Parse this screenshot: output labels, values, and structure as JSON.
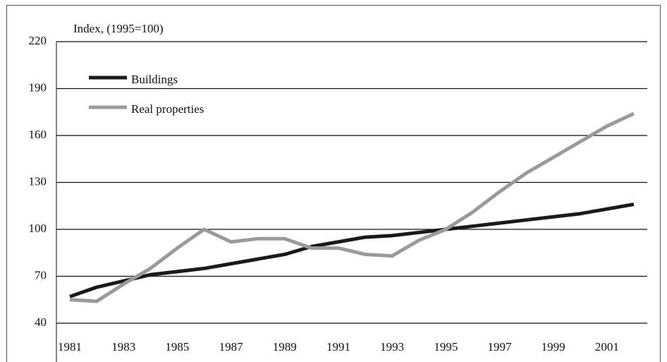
{
  "chart_data": {
    "type": "line",
    "y_label": "Index, (1995=100)",
    "x": [
      1981,
      1982,
      1983,
      1984,
      1985,
      1986,
      1987,
      1988,
      1989,
      1990,
      1991,
      1992,
      1993,
      1994,
      1995,
      1996,
      1997,
      1998,
      1999,
      2000,
      2001,
      2002
    ],
    "series": [
      {
        "name": "Buildings",
        "color": "#1a1a1a",
        "values": [
          57,
          63,
          67,
          71,
          73,
          75,
          78,
          81,
          84,
          89,
          92,
          95,
          96,
          98,
          100,
          102,
          104,
          106,
          108,
          110,
          113,
          116
        ]
      },
      {
        "name": "Real properties",
        "color": "#9a9a9a",
        "values": [
          55,
          54,
          65,
          75,
          88,
          100,
          92,
          94,
          94,
          88,
          88,
          84,
          83,
          93,
          100,
          111,
          124,
          136,
          146,
          156,
          166,
          174
        ]
      }
    ],
    "xlim": [
      1980.5,
      2002.5
    ],
    "xticks": [
      1981,
      1983,
      1985,
      1987,
      1989,
      1991,
      1993,
      1995,
      1997,
      1999,
      2001
    ],
    "ylim": [
      40,
      220
    ],
    "yticks": [
      40,
      70,
      100,
      130,
      160,
      190,
      220
    ],
    "grid": true,
    "legend": "upper-left"
  }
}
